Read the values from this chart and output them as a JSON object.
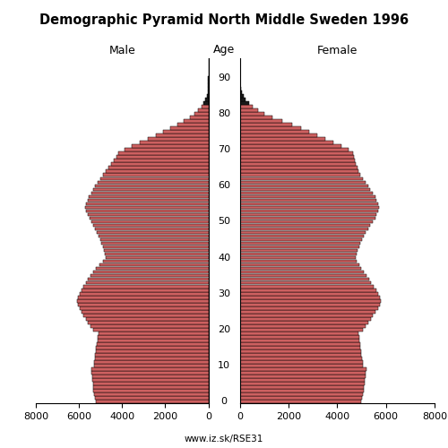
{
  "title": "Demographic Pyramid North Middle Sweden 1996",
  "label_male": "Male",
  "label_female": "Female",
  "age_label": "Age",
  "footer": "www.iz.sk/RSE31",
  "xlim": 8000,
  "bar_color": "#cd6060",
  "bar_color_old": "#1a1a1a",
  "age_color_threshold": 83,
  "bar_linewidth": 0.35,
  "male": [
    5200,
    5250,
    5300,
    5320,
    5340,
    5360,
    5380,
    5400,
    5420,
    5440,
    5300,
    5280,
    5260,
    5240,
    5220,
    5200,
    5180,
    5150,
    5120,
    5090,
    5350,
    5450,
    5580,
    5680,
    5780,
    5880,
    5980,
    6050,
    6100,
    6050,
    5980,
    5880,
    5780,
    5680,
    5580,
    5480,
    5350,
    5200,
    5050,
    4900,
    4750,
    4800,
    4850,
    4900,
    4960,
    5020,
    5080,
    5160,
    5250,
    5330,
    5420,
    5520,
    5600,
    5660,
    5720,
    5660,
    5600,
    5540,
    5440,
    5340,
    5240,
    5120,
    5000,
    4880,
    4760,
    4640,
    4520,
    4400,
    4280,
    4160,
    3900,
    3560,
    3200,
    2820,
    2440,
    2100,
    1760,
    1440,
    1130,
    860,
    640,
    460,
    320,
    210,
    130,
    75,
    38,
    18,
    8,
    3,
    1,
    0,
    0,
    0,
    0,
    0
  ],
  "female": [
    4980,
    5020,
    5060,
    5080,
    5100,
    5120,
    5140,
    5160,
    5180,
    5200,
    5060,
    5040,
    5020,
    5000,
    4980,
    4960,
    4940,
    4920,
    4900,
    4880,
    5050,
    5150,
    5280,
    5380,
    5480,
    5580,
    5680,
    5760,
    5800,
    5760,
    5700,
    5600,
    5500,
    5400,
    5300,
    5200,
    5100,
    5000,
    4900,
    4800,
    4760,
    4800,
    4850,
    4900,
    4960,
    5020,
    5080,
    5160,
    5260,
    5360,
    5460,
    5560,
    5620,
    5680,
    5720,
    5680,
    5620,
    5560,
    5460,
    5360,
    5260,
    5160,
    5060,
    4960,
    4860,
    4820,
    4780,
    4740,
    4700,
    4660,
    4480,
    4180,
    3860,
    3520,
    3180,
    2840,
    2520,
    2160,
    1760,
    1360,
    1020,
    760,
    545,
    375,
    245,
    148,
    82,
    40,
    18,
    8,
    3,
    1,
    0,
    0,
    0,
    0
  ]
}
